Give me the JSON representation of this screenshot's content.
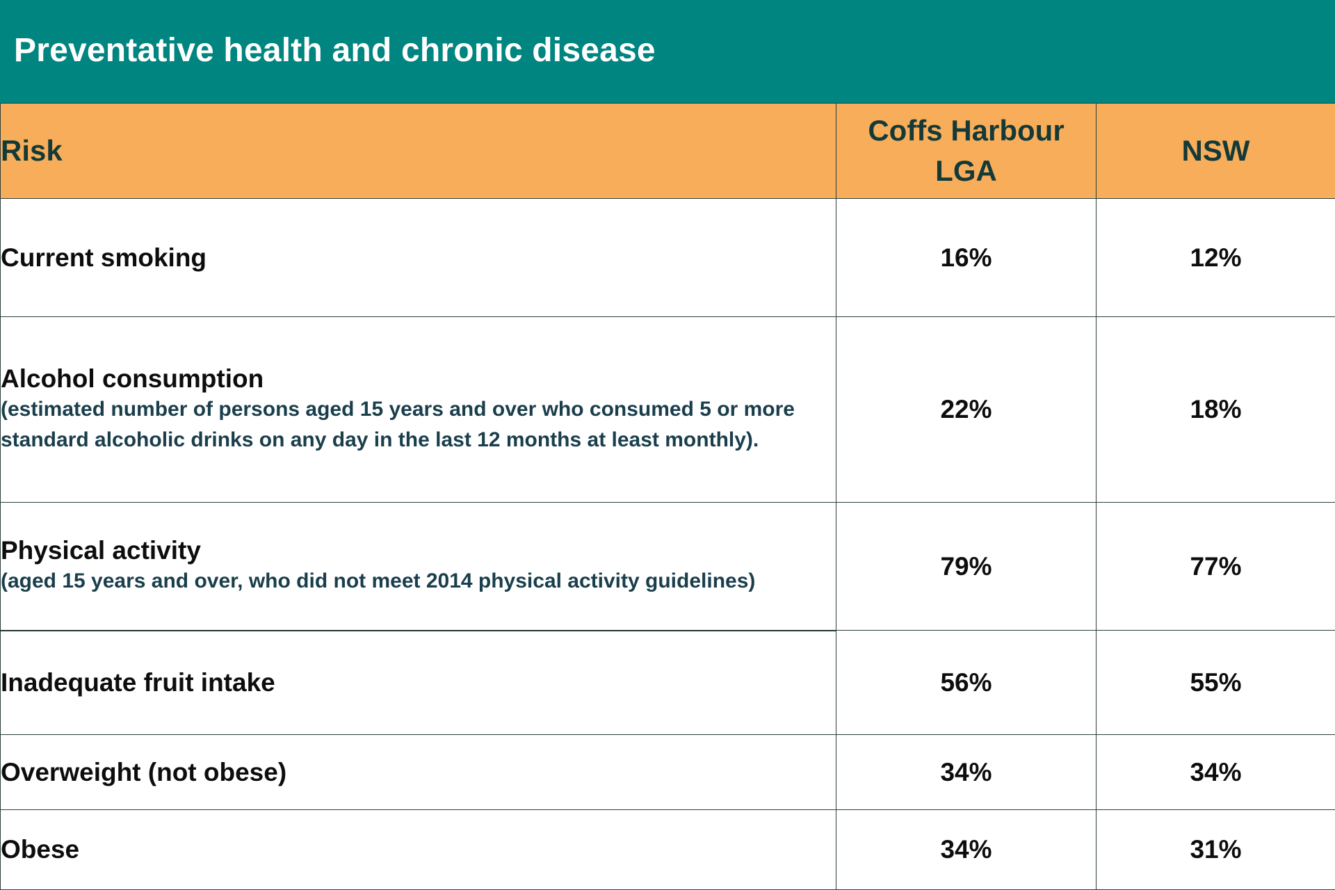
{
  "title": "Preventative health and chronic disease",
  "colors": {
    "title_bg": "#008580",
    "header_bg": "#f8ad5a",
    "header_text": "#133a38",
    "note_text": "#1a3e4c",
    "border": "#2c3e3c"
  },
  "table": {
    "headers": {
      "risk": "Risk",
      "coffs_line1": "Coffs Harbour",
      "coffs_line2": "LGA",
      "nsw": "NSW"
    },
    "rows": [
      {
        "name": "Current smoking",
        "note": "",
        "coffs": "16%",
        "nsw": "12%"
      },
      {
        "name": "Alcohol consumption",
        "note": "(estimated number of persons aged 15 years and over who consumed 5 or more standard alcoholic drinks on any day in the last 12 months at least monthly).",
        "coffs": "22%",
        "nsw": "18%"
      },
      {
        "name": "Physical activity",
        "note": "(aged 15 years and over, who did not meet 2014 physical activity guidelines)",
        "coffs": "79%",
        "nsw": "77%"
      },
      {
        "name": "Inadequate fruit intake",
        "note": "",
        "coffs": "56%",
        "nsw": "55%"
      },
      {
        "name": "Overweight (not obese)",
        "note": "",
        "coffs": "34%",
        "nsw": "34%"
      },
      {
        "name": "Obese",
        "note": "",
        "coffs": "34%",
        "nsw": "31%"
      }
    ]
  }
}
